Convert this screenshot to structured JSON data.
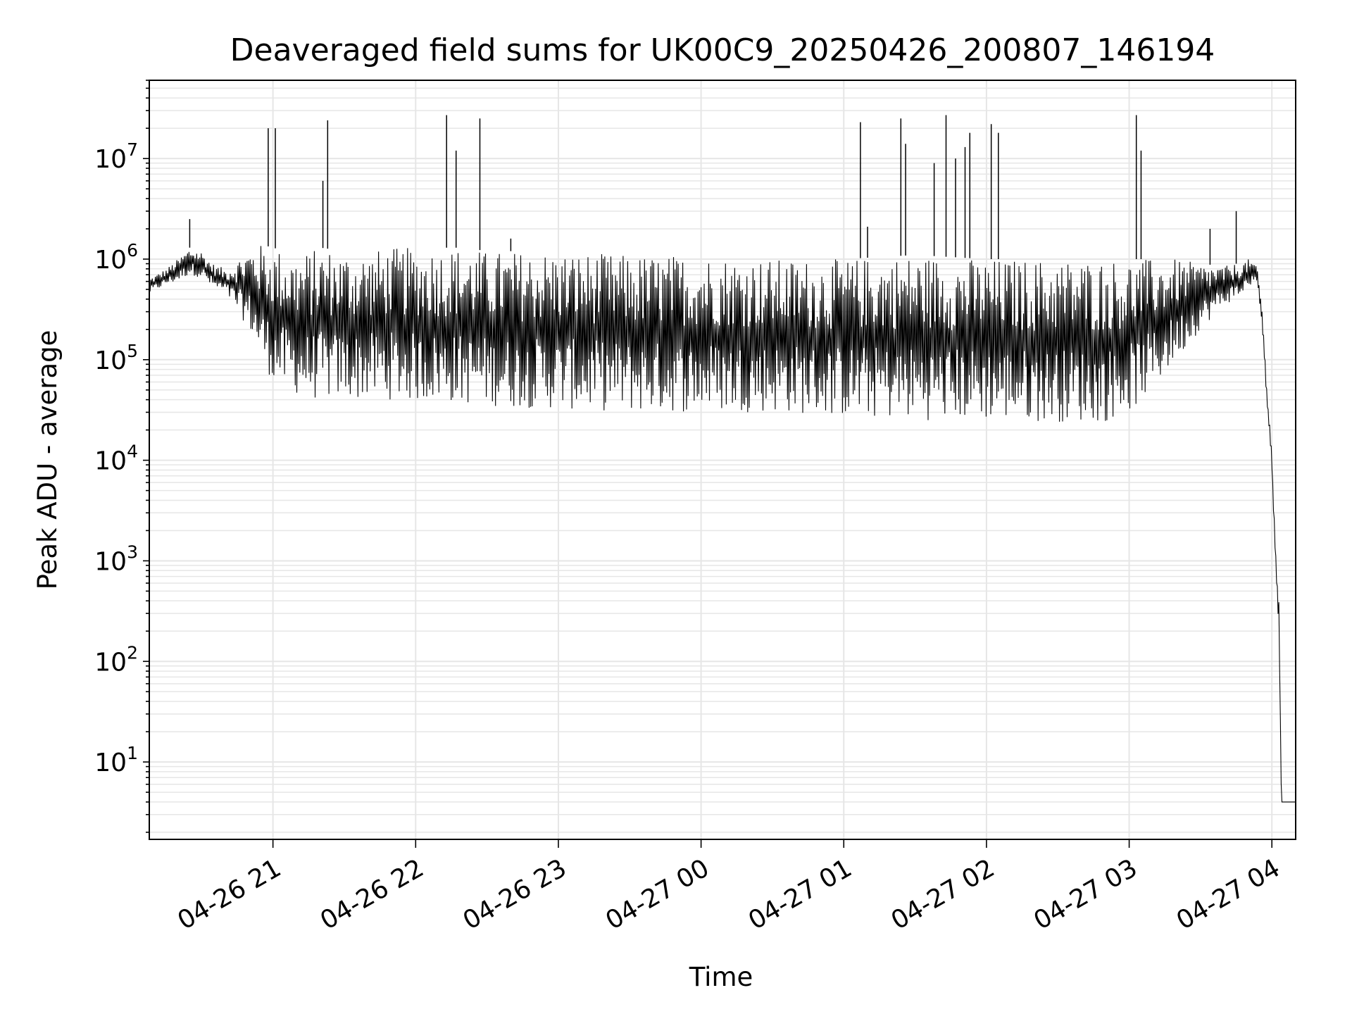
{
  "chart_data": {
    "type": "line",
    "title": "Deaveraged field sums for UK00C9_20250426_200807_146194",
    "xlabel": "Time",
    "ylabel": "Peak ADU - average",
    "x_tick_labels": [
      "04-26 21",
      "04-26 22",
      "04-26 23",
      "04-27 00",
      "04-27 01",
      "04-27 02",
      "04-27 03",
      "04-27 04"
    ],
    "x_ticks": [
      "2025-04-26 21:00",
      "2025-04-26 22:00",
      "2025-04-26 23:00",
      "2025-04-27 00:00",
      "2025-04-27 01:00",
      "2025-04-27 02:00",
      "2025-04-27 03:00",
      "2025-04-27 04:00"
    ],
    "xlim": [
      "2025-04-26 20:08",
      "2025-04-27 04:10"
    ],
    "y_scale": "log",
    "y_tick_exponents": [
      1,
      2,
      3,
      4,
      5,
      6,
      7
    ],
    "ylim": [
      1.7,
      60000000
    ],
    "grid": "major and minor",
    "series_color": "#000000",
    "grid_color": "#e6e6e6",
    "series": [
      {
        "x": [
          "2025-04-26 20:08",
          "2025-04-26 20:15",
          "2025-04-26 20:20",
          "2025-04-26 20:25",
          "2025-04-26 20:30",
          "2025-04-26 20:35",
          "2025-04-26 20:40",
          "2025-04-26 20:45",
          "2025-04-26 20:50",
          "2025-04-26 20:55",
          "2025-04-26 21:00",
          "2025-04-26 21:05",
          "2025-04-26 21:10",
          "2025-04-26 21:15",
          "2025-04-26 21:20",
          "2025-04-26 21:30",
          "2025-04-26 21:40",
          "2025-04-26 21:50",
          "2025-04-26 22:00",
          "2025-04-26 22:10",
          "2025-04-26 22:20",
          "2025-04-26 22:30",
          "2025-04-26 22:40",
          "2025-04-26 22:50",
          "2025-04-26 23:00",
          "2025-04-26 23:30",
          "2025-04-27 00:00",
          "2025-04-27 00:30",
          "2025-04-27 01:00",
          "2025-04-27 01:30",
          "2025-04-27 02:00",
          "2025-04-27 02:30",
          "2025-04-27 02:50",
          "2025-04-27 03:00",
          "2025-04-27 03:10",
          "2025-04-27 03:20",
          "2025-04-27 03:30",
          "2025-04-27 03:40",
          "2025-04-27 03:45",
          "2025-04-27 03:48",
          "2025-04-27 03:50",
          "2025-04-27 03:52",
          "2025-04-27 03:54",
          "2025-04-27 03:56",
          "2025-04-27 03:58",
          "2025-04-27 04:00",
          "2025-04-27 04:02",
          "2025-04-27 04:03",
          "2025-04-27 04:04",
          "2025-04-27 04:06",
          "2025-04-27 04:08",
          "2025-04-27 04:10"
        ],
        "high": [
          650000,
          800000,
          1000000,
          1300000,
          1200000,
          900000,
          800000,
          1000000,
          1300000,
          1400000,
          1300000,
          1200000,
          1100000,
          1200000,
          1300000,
          1200000,
          1200000,
          1300000,
          1300000,
          1300000,
          1300000,
          1200000,
          1200000,
          1200000,
          1200000,
          1100000,
          1100000,
          1000000,
          1000000,
          1100000,
          1000000,
          1000000,
          1000000,
          1000000,
          1000000,
          1000000,
          900000,
          850000,
          900000,
          950000,
          1000000,
          950000,
          800000,
          300000,
          50000,
          12000,
          800,
          400,
          4,
          4,
          4,
          4
        ],
        "low": [
          450000,
          550000,
          600000,
          700000,
          650000,
          500000,
          450000,
          300000,
          200000,
          100000,
          60000,
          50000,
          45000,
          40000,
          40000,
          40000,
          40000,
          40000,
          38000,
          38000,
          36000,
          35000,
          33000,
          33000,
          32000,
          30000,
          30000,
          30000,
          27000,
          25000,
          25000,
          24000,
          24000,
          30000,
          50000,
          100000,
          200000,
          350000,
          400000,
          450000,
          500000,
          600000,
          500000,
          200000,
          30000,
          8000,
          500,
          200,
          4,
          4,
          4,
          4
        ]
      }
    ],
    "spikes": [
      {
        "x": "2025-04-26 20:58",
        "y": 20000000
      },
      {
        "x": "2025-04-26 21:01",
        "y": 20000000
      },
      {
        "x": "2025-04-26 21:21",
        "y": 6000000
      },
      {
        "x": "2025-04-26 21:23",
        "y": 24000000
      },
      {
        "x": "2025-04-26 22:13",
        "y": 27000000
      },
      {
        "x": "2025-04-26 22:17",
        "y": 12000000
      },
      {
        "x": "2025-04-26 22:27",
        "y": 25000000
      },
      {
        "x": "2025-04-27 01:07",
        "y": 23000000
      },
      {
        "x": "2025-04-27 01:24",
        "y": 25000000
      },
      {
        "x": "2025-04-27 01:26",
        "y": 14000000
      },
      {
        "x": "2025-04-27 01:38",
        "y": 9000000
      },
      {
        "x": "2025-04-27 01:43",
        "y": 27000000
      },
      {
        "x": "2025-04-27 01:47",
        "y": 10000000
      },
      {
        "x": "2025-04-27 01:51",
        "y": 13000000
      },
      {
        "x": "2025-04-27 01:53",
        "y": 18000000
      },
      {
        "x": "2025-04-27 02:02",
        "y": 22000000
      },
      {
        "x": "2025-04-27 02:05",
        "y": 18000000
      },
      {
        "x": "2025-04-27 03:03",
        "y": 27000000
      },
      {
        "x": "2025-04-27 03:05",
        "y": 12000000
      },
      {
        "x": "2025-04-27 03:34",
        "y": 2000000
      },
      {
        "x": "2025-04-27 03:45",
        "y": 3000000
      },
      {
        "x": "2025-04-26 20:25",
        "y": 2500000
      },
      {
        "x": "2025-04-26 22:40",
        "y": 1600000
      },
      {
        "x": "2025-04-27 01:10",
        "y": 2100000
      }
    ]
  }
}
